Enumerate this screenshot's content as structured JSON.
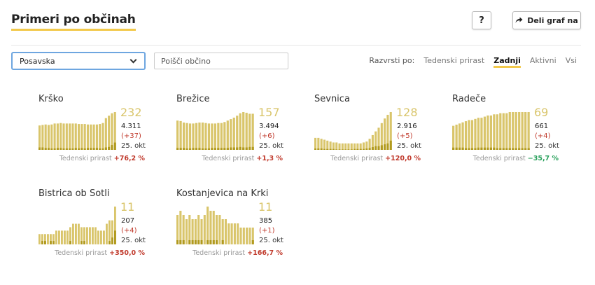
{
  "header": {
    "title": "Primeri po občinah",
    "help_label": "?",
    "share_label": "Deli graf na"
  },
  "filters": {
    "region_selected": "Posavska",
    "search_placeholder": "Poišči občino"
  },
  "sort": {
    "label": "Razvrsti po:",
    "options": [
      "Tedenski prirast",
      "Zadnji",
      "Aktivni",
      "Vsi"
    ],
    "active": "Zadnji"
  },
  "colors": {
    "bar_light": "#d9c56b",
    "bar_dark": "#b19a1e",
    "accent": "#f2c94c",
    "up": "#c0392b",
    "down": "#27a05a"
  },
  "growth_label": "Tedenski prirast",
  "municipalities": [
    {
      "name": "Krško",
      "active": "232",
      "total": "4.311",
      "delta": "(+37)",
      "date": "25. okt",
      "growth": "+76,2 %",
      "trend": "up",
      "bars": [
        100,
        102,
        104,
        102,
        104,
        108,
        108,
        110,
        108,
        108,
        108,
        108,
        108,
        106,
        106,
        106,
        104,
        104,
        104,
        104,
        106,
        110,
        130,
        140,
        150,
        155
      ],
      "dark": [
        10,
        10,
        8,
        8,
        6,
        6,
        8,
        8,
        6,
        6,
        6,
        6,
        8,
        6,
        8,
        6,
        8,
        8,
        8,
        8,
        6,
        6,
        10,
        12,
        20,
        30
      ]
    },
    {
      "name": "Brežice",
      "active": "157",
      "total": "3.494",
      "delta": "(+6)",
      "date": "25. okt",
      "growth": "+1,3 %",
      "trend": "up",
      "bars": [
        120,
        118,
        112,
        110,
        108,
        108,
        110,
        112,
        112,
        110,
        108,
        108,
        108,
        110,
        110,
        114,
        120,
        126,
        132,
        140,
        150,
        155,
        152,
        148,
        148
      ],
      "dark": [
        8,
        8,
        8,
        6,
        6,
        8,
        8,
        8,
        6,
        6,
        6,
        8,
        8,
        8,
        8,
        8,
        8,
        10,
        10,
        10,
        12,
        10,
        10,
        12,
        12
      ]
    },
    {
      "name": "Sevnica",
      "active": "128",
      "total": "2.916",
      "delta": "(+5)",
      "date": "25. okt",
      "growth": "+120,0 %",
      "trend": "up",
      "bars": [
        26,
        26,
        24,
        22,
        20,
        18,
        16,
        16,
        14,
        14,
        14,
        14,
        14,
        14,
        14,
        14,
        16,
        18,
        24,
        32,
        40,
        48,
        58,
        68,
        76,
        82
      ],
      "dark": [
        3,
        3,
        3,
        2,
        2,
        2,
        2,
        1,
        1,
        1,
        1,
        1,
        1,
        2,
        2,
        2,
        2,
        3,
        4,
        6,
        8,
        8,
        10,
        12,
        14,
        20
      ]
    },
    {
      "name": "Radeče",
      "active": "69",
      "total": "661",
      "delta": "(+4)",
      "date": "25. okt",
      "growth": "−35,7 %",
      "trend": "down",
      "bars": [
        42,
        44,
        46,
        48,
        50,
        52,
        52,
        54,
        56,
        56,
        58,
        60,
        60,
        62,
        62,
        64,
        64,
        64,
        66,
        66,
        66,
        66,
        66,
        66,
        66
      ],
      "dark": [
        4,
        4,
        4,
        4,
        3,
        3,
        3,
        3,
        4,
        4,
        4,
        4,
        4,
        4,
        3,
        3,
        3,
        3,
        3,
        3,
        3,
        3,
        3,
        3,
        3
      ]
    },
    {
      "name": "Bistrica ob Sotli",
      "active": "11",
      "total": "207",
      "delta": "(+4)",
      "date": "25. okt",
      "growth": "+350,0 %",
      "trend": "up",
      "bars": [
        3,
        3,
        3,
        3,
        3,
        3,
        4,
        4,
        4,
        4,
        4,
        5,
        6,
        6,
        6,
        5,
        5,
        5,
        5,
        5,
        5,
        4,
        4,
        4,
        6,
        7,
        7,
        11
      ],
      "dark": [
        0,
        1,
        1,
        0,
        1,
        1,
        0,
        0,
        0,
        0,
        0,
        1,
        0,
        0,
        0,
        1,
        1,
        0,
        0,
        0,
        0,
        0,
        0,
        0,
        0,
        1,
        2,
        4
      ]
    },
    {
      "name": "Kostanjevica na Krki",
      "active": "11",
      "total": "385",
      "delta": "(+1)",
      "date": "25. okt",
      "growth": "+166,7 %",
      "trend": "up",
      "bars": [
        7,
        8,
        7,
        6,
        7,
        6,
        6,
        7,
        6,
        7,
        9,
        8,
        8,
        7,
        7,
        6,
        6,
        5,
        5,
        5,
        5,
        4,
        4,
        4,
        4,
        4
      ],
      "dark": [
        1,
        1,
        1,
        0,
        1,
        1,
        1,
        1,
        1,
        0,
        1,
        1,
        1,
        1,
        0,
        1,
        0,
        0,
        0,
        0,
        0,
        0,
        0,
        0,
        0,
        1
      ]
    }
  ]
}
